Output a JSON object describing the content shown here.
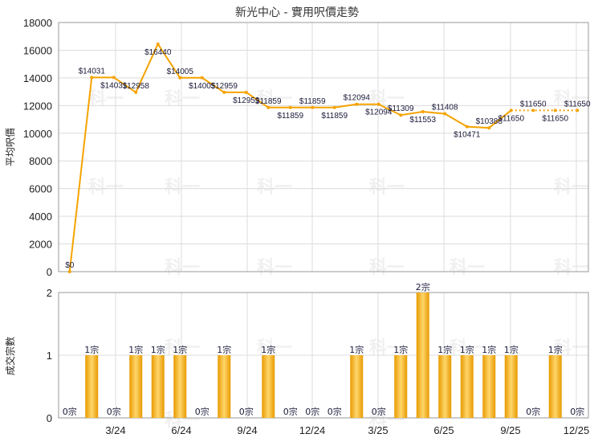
{
  "chart_data": [
    {
      "type": "line",
      "title": "新光中心 - 實用呎價走勢",
      "ylabel": "平均呎價",
      "ylim": [
        0,
        18000
      ],
      "yticks": [
        0,
        2000,
        4000,
        6000,
        8000,
        10000,
        12000,
        14000,
        16000,
        18000
      ],
      "grid": true,
      "color": "#f5a300",
      "x_labels": [
        "3/24",
        "6/24",
        "9/24",
        "12/24",
        "3/25",
        "6/25",
        "9/25",
        "12/25"
      ],
      "series": [
        {
          "values": [
            0,
            14031,
            14031,
            12958,
            16440,
            14005,
            14005,
            12959,
            12959,
            11859,
            11859,
            11859,
            11859,
            12094,
            12094,
            11309,
            11553,
            11408,
            10471,
            10388,
            11650,
            11650,
            11650,
            11650
          ],
          "labels": [
            "$0",
            "$14031",
            "$14031",
            "$12958",
            "$16440",
            "$14005",
            "$14005",
            "$12959",
            "$12959",
            "$11859",
            "$11859",
            "$11859",
            "$11859",
            "$12094",
            "$12094",
            "$11309",
            "$11553",
            "$11408",
            "$10471",
            "$10388",
            "$11650",
            "$11650",
            "$11650",
            "$11650"
          ]
        }
      ]
    },
    {
      "type": "bar",
      "ylabel": "成交宗數",
      "ylim": [
        0,
        2
      ],
      "yticks": [
        0,
        1,
        2
      ],
      "grid": true,
      "color": "#f5a300",
      "x_labels": [
        "3/24",
        "6/24",
        "9/24",
        "12/24",
        "3/25",
        "6/25",
        "9/25",
        "12/25"
      ],
      "values": [
        0,
        1,
        0,
        1,
        1,
        1,
        0,
        1,
        0,
        1,
        0,
        0,
        0,
        1,
        0,
        1,
        2,
        1,
        1,
        1,
        1,
        0,
        1,
        0
      ],
      "labels": [
        "0宗",
        "1宗",
        "0宗",
        "1宗",
        "1宗",
        "1宗",
        "0宗",
        "1宗",
        "0宗",
        "1宗",
        "0宗",
        "0宗",
        "0宗",
        "1宗",
        "0宗",
        "1宗",
        "2宗",
        "1宗",
        "1宗",
        "1宗",
        "1宗",
        "0宗",
        "1宗",
        "0宗"
      ]
    }
  ],
  "watermark": "科一"
}
